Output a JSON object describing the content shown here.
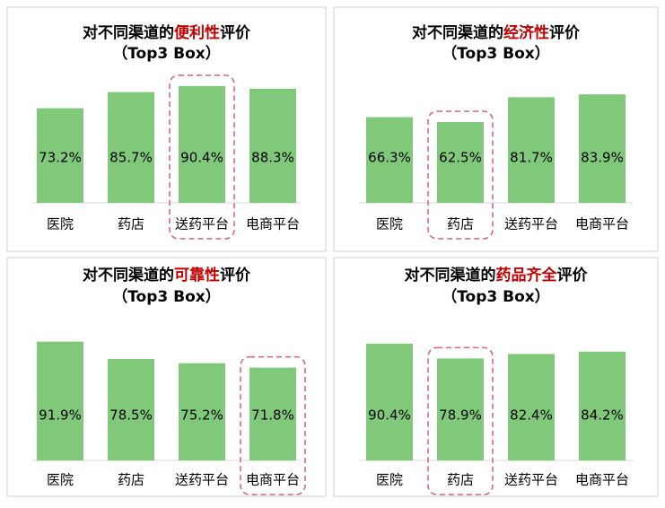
{
  "chart_data": [
    {
      "type": "bar",
      "title": {
        "before": "对不同渠道的",
        "emphasis": "便利性",
        "after": "评价"
      },
      "subtitle": "（Top3 Box）",
      "categories": [
        "医院",
        "药店",
        "送药平台",
        "电商平台"
      ],
      "values": [
        73.2,
        85.7,
        90.4,
        88.3
      ],
      "value_labels": [
        "73.2%",
        "85.7%",
        "90.4%",
        "88.3%"
      ],
      "color": "#80c97a",
      "emphasis_color": "#c00000",
      "highlight": 2
    },
    {
      "type": "bar",
      "title": {
        "before": "对不同渠道的",
        "emphasis": "经济性",
        "after": "评价"
      },
      "subtitle": "（Top3 Box）",
      "categories": [
        "医院",
        "药店",
        "送药平台",
        "电商平台"
      ],
      "values": [
        66.3,
        62.5,
        81.7,
        83.9
      ],
      "value_labels": [
        "66.3%",
        "62.5%",
        "81.7%",
        "83.9%"
      ],
      "color": "#80c97a",
      "emphasis_color": "#c00000",
      "highlight": 1
    },
    {
      "type": "bar",
      "title": {
        "before": "对不同渠道的",
        "emphasis": "可靠性",
        "after": "评价"
      },
      "subtitle": "（Top3 Box）",
      "categories": [
        "医院",
        "药店",
        "送药平台",
        "电商平台"
      ],
      "values": [
        91.9,
        78.5,
        75.2,
        71.8
      ],
      "value_labels": [
        "91.9%",
        "78.5%",
        "75.2%",
        "71.8%"
      ],
      "color": "#80c97a",
      "emphasis_color": "#c00000",
      "highlight": 3
    },
    {
      "type": "bar",
      "title": {
        "before": "对不同渠道的",
        "emphasis": "药品齐全",
        "after": "评价"
      },
      "subtitle": "（Top3 Box）",
      "categories": [
        "医院",
        "药店",
        "送药平台",
        "电商平台"
      ],
      "values": [
        90.4,
        78.9,
        82.4,
        84.2
      ],
      "value_labels": [
        "90.4%",
        "78.9%",
        "82.4%",
        "84.2%"
      ],
      "color": "#80c97a",
      "emphasis_color": "#c00000",
      "highlight": 1
    }
  ]
}
